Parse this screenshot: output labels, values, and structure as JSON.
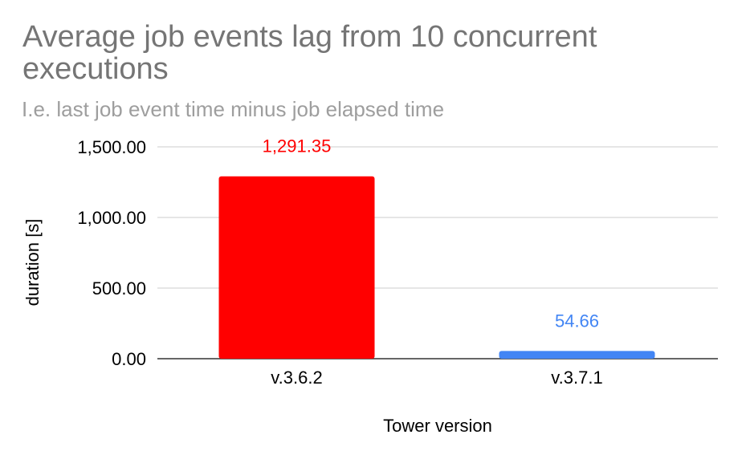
{
  "chart_data": {
    "type": "bar",
    "title": "Average job events lag from 10 concurrent executions",
    "subtitle": "I.e. last job event time minus job elapsed time",
    "xlabel": "Tower version",
    "ylabel": "duration [s]",
    "categories": [
      "v.3.6.2",
      "v.3.7.1"
    ],
    "values": [
      1291.35,
      54.66
    ],
    "value_labels": [
      "1,291.35",
      "54.66"
    ],
    "colors": [
      "#ff0000",
      "#4285f4"
    ],
    "ylim": [
      0,
      1500
    ],
    "yticks": [
      0,
      500,
      1000,
      1500
    ],
    "ytick_labels": [
      "0.00",
      "500.00",
      "1,000.00",
      "1,500.00"
    ],
    "grid": true,
    "legend": "none"
  }
}
